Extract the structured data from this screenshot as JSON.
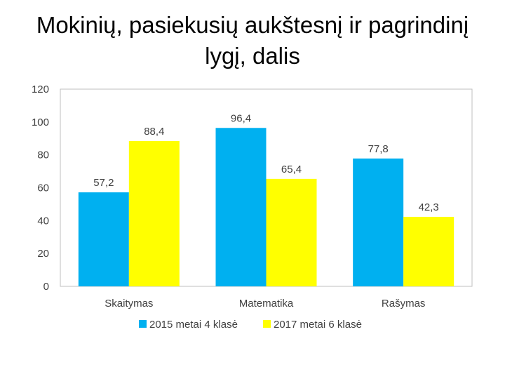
{
  "chart_data": {
    "type": "bar",
    "title_lines": [
      "Mokinių, pasiekusių aukštesnį ir pagrindinį",
      "lygį, dalis"
    ],
    "categories": [
      "Skaitymas",
      "Matematika",
      "Rašymas"
    ],
    "series": [
      {
        "name": "2015 metai 4 klasė",
        "values": [
          57.2,
          96.4,
          77.8
        ],
        "labels": [
          "57,2",
          "96,4",
          "77,8"
        ],
        "color": "#00B0F0"
      },
      {
        "name": "2017 metai 6 klasė",
        "values": [
          88.4,
          65.4,
          42.3
        ],
        "labels": [
          "88,4",
          "65,4",
          "42,3"
        ],
        "color": "#FFFF00"
      }
    ],
    "yticks": [
      0,
      20,
      40,
      60,
      80,
      100,
      120
    ],
    "ylim": [
      0,
      120
    ],
    "grid": false,
    "legend": "bottom"
  }
}
